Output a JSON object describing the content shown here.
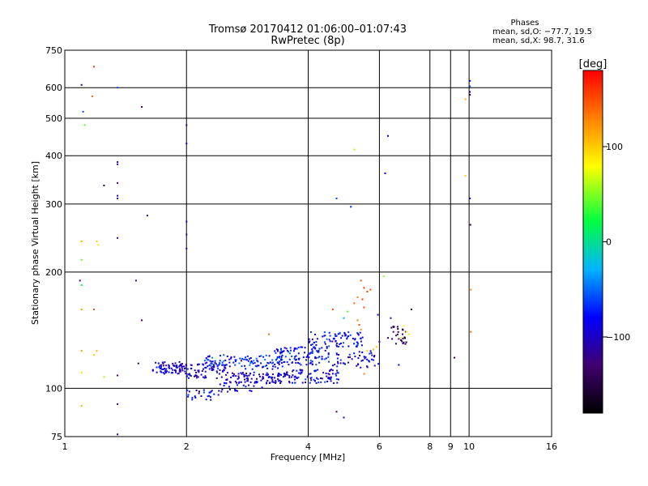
{
  "chart_data": {
    "type": "scatter",
    "title_lines": [
      "Tromsø 20170412 01:06:00–01:07:43",
      "RwPretec (8p)"
    ],
    "phases_block": {
      "heading": "Phases",
      "line1": "mean, sd,O: −77.7, 19.5",
      "line2": "mean, sd,X:  98.7, 31.6"
    },
    "xlabel": "Frequency [MHz]",
    "ylabel": "Stationary phase Virtual Height [km]",
    "xscale": "log",
    "yscale": "log",
    "xlim": [
      1,
      16
    ],
    "ylim": [
      75,
      750
    ],
    "x_ticks": [
      1,
      2,
      4,
      6,
      8,
      9,
      10,
      16
    ],
    "x_tick_labels": [
      "1",
      "2",
      "4",
      "6",
      "8",
      "9",
      "10",
      "16"
    ],
    "y_ticks": [
      75,
      100,
      200,
      300,
      400,
      500,
      600,
      750
    ],
    "y_tick_labels": [
      "75",
      "100",
      "200",
      "300",
      "400",
      "500",
      "600",
      "750"
    ],
    "grid": true,
    "colorbar": {
      "label": "[deg]",
      "range": [
        -180,
        180
      ],
      "ticks": [
        100,
        0,
        -100
      ],
      "tick_labels": [
        "100",
        "0",
        "−100"
      ]
    },
    "series": [
      {
        "values": [
          {
            "x": 1.1,
            "y": 610,
            "c": -110
          },
          {
            "x": 1.11,
            "y": 520,
            "c": -60
          },
          {
            "x": 1.12,
            "y": 480,
            "c": 40
          },
          {
            "x": 1.18,
            "y": 680,
            "c": 160
          },
          {
            "x": 1.17,
            "y": 570,
            "c": 140
          },
          {
            "x": 1.35,
            "y": 600,
            "c": -60
          },
          {
            "x": 1.55,
            "y": 535,
            "c": -130
          },
          {
            "x": 1.35,
            "y": 385,
            "c": -120
          },
          {
            "x": 1.35,
            "y": 380,
            "c": -110
          },
          {
            "x": 1.25,
            "y": 335,
            "c": -140
          },
          {
            "x": 1.35,
            "y": 340,
            "c": -120
          },
          {
            "x": 1.35,
            "y": 315,
            "c": -100
          },
          {
            "x": 1.35,
            "y": 310,
            "c": -110
          },
          {
            "x": 1.6,
            "y": 280,
            "c": -120
          },
          {
            "x": 1.35,
            "y": 245,
            "c": -120
          },
          {
            "x": 1.1,
            "y": 240,
            "c": 110
          },
          {
            "x": 1.2,
            "y": 240,
            "c": 100
          },
          {
            "x": 1.21,
            "y": 235,
            "c": 90
          },
          {
            "x": 1.1,
            "y": 215,
            "c": 40
          },
          {
            "x": 1.09,
            "y": 190,
            "c": -120
          },
          {
            "x": 1.1,
            "y": 185,
            "c": 20
          },
          {
            "x": 1.1,
            "y": 160,
            "c": 120
          },
          {
            "x": 1.18,
            "y": 160,
            "c": 150
          },
          {
            "x": 1.5,
            "y": 190,
            "c": -120
          },
          {
            "x": 1.55,
            "y": 150,
            "c": -130
          },
          {
            "x": 1.1,
            "y": 125,
            "c": 120
          },
          {
            "x": 1.2,
            "y": 125,
            "c": 110
          },
          {
            "x": 1.18,
            "y": 122,
            "c": 100
          },
          {
            "x": 1.1,
            "y": 110,
            "c": 90
          },
          {
            "x": 1.25,
            "y": 107,
            "c": 60
          },
          {
            "x": 1.35,
            "y": 108,
            "c": -140
          },
          {
            "x": 1.52,
            "y": 116,
            "c": -150
          },
          {
            "x": 1.1,
            "y": 90,
            "c": 110
          },
          {
            "x": 1.35,
            "y": 91,
            "c": -130
          },
          {
            "x": 1.35,
            "y": 76,
            "c": -120
          },
          {
            "x": 2.0,
            "y": 480,
            "c": -120
          },
          {
            "x": 2.0,
            "y": 430,
            "c": -80
          },
          {
            "x": 2.0,
            "y": 270,
            "c": -90
          },
          {
            "x": 2.0,
            "y": 250,
            "c": -110
          },
          {
            "x": 2.0,
            "y": 230,
            "c": -100
          },
          {
            "x": 5.2,
            "y": 415,
            "c": 60
          },
          {
            "x": 6.3,
            "y": 450,
            "c": -100
          },
          {
            "x": 6.2,
            "y": 360,
            "c": -90
          },
          {
            "x": 4.7,
            "y": 310,
            "c": -60
          },
          {
            "x": 5.1,
            "y": 295,
            "c": -70
          },
          {
            "x": 9.8,
            "y": 560,
            "c": 110
          },
          {
            "x": 9.8,
            "y": 355,
            "c": 100
          },
          {
            "x": 10.05,
            "y": 625,
            "c": -80
          },
          {
            "x": 10.05,
            "y": 605,
            "c": -60
          },
          {
            "x": 10.05,
            "y": 585,
            "c": -120
          },
          {
            "x": 10.05,
            "y": 575,
            "c": -140
          },
          {
            "x": 10.05,
            "y": 310,
            "c": -100
          },
          {
            "x": 10.08,
            "y": 265,
            "c": -140
          },
          {
            "x": 10.1,
            "y": 180,
            "c": 130
          },
          {
            "x": 10.1,
            "y": 140,
            "c": 140
          },
          {
            "x": 9.2,
            "y": 120,
            "c": -140
          },
          {
            "x": 6.15,
            "y": 195,
            "c": 50
          },
          {
            "x": 6.9,
            "y": 145,
            "c": 80
          },
          {
            "x": 7.0,
            "y": 140,
            "c": 90
          },
          {
            "x": 6.8,
            "y": 135,
            "c": 70
          },
          {
            "x": 7.1,
            "y": 138,
            "c": 85
          },
          {
            "x": 7.2,
            "y": 160,
            "c": -140
          },
          {
            "x": 6.7,
            "y": 115,
            "c": -80
          },
          {
            "x": 4.7,
            "y": 87,
            "c": -130
          },
          {
            "x": 4.9,
            "y": 84,
            "c": -110
          },
          {
            "x": 3.2,
            "y": 138,
            "c": 140
          },
          {
            "x": 5.4,
            "y": 190,
            "c": 150
          },
          {
            "x": 5.5,
            "y": 182,
            "c": 160
          },
          {
            "x": 5.6,
            "y": 178,
            "c": 155
          },
          {
            "x": 5.7,
            "y": 180,
            "c": 150
          },
          {
            "x": 5.3,
            "y": 172,
            "c": 130
          },
          {
            "x": 5.45,
            "y": 170,
            "c": 160
          },
          {
            "x": 5.2,
            "y": 166,
            "c": 140
          },
          {
            "x": 5.5,
            "y": 162,
            "c": 150
          },
          {
            "x": 5.3,
            "y": 150,
            "c": 130
          },
          {
            "x": 5.35,
            "y": 146,
            "c": 150
          },
          {
            "x": 5.4,
            "y": 142,
            "c": 120
          },
          {
            "x": 5.6,
            "y": 125,
            "c": 100
          },
          {
            "x": 5.8,
            "y": 126,
            "c": 110
          },
          {
            "x": 5.9,
            "y": 128,
            "c": 105
          },
          {
            "x": 5.5,
            "y": 109,
            "c": 130
          },
          {
            "x": 5.0,
            "y": 158,
            "c": 40
          },
          {
            "x": 4.9,
            "y": 152,
            "c": -30
          },
          {
            "x": 4.6,
            "y": 160,
            "c": 150
          },
          {
            "x": 6.5,
            "y": 140,
            "c": -130
          },
          {
            "x": 6.6,
            "y": 137,
            "c": -140
          },
          {
            "x": 6.3,
            "y": 135,
            "c": -150
          },
          {
            "x": 6.0,
            "y": 132,
            "c": -120
          },
          {
            "x": 6.4,
            "y": 152,
            "c": -110
          },
          {
            "x": 5.95,
            "y": 155,
            "c": -90
          }
        ]
      }
    ],
    "clusters": [
      {
        "x_range": [
          1.65,
          2.0
        ],
        "y_range": [
          109,
          117
        ],
        "count": 80,
        "c_range": [
          -130,
          -70
        ]
      },
      {
        "x_range": [
          2.0,
          2.5
        ],
        "y_range": [
          106,
          117
        ],
        "count": 70,
        "c_range": [
          -130,
          -60
        ]
      },
      {
        "x_range": [
          2.5,
          3.5
        ],
        "y_range": [
          103,
          110
        ],
        "count": 90,
        "c_range": [
          -130,
          -70
        ]
      },
      {
        "x_range": [
          2.2,
          3.5
        ],
        "y_range": [
          112,
          122
        ],
        "count": 110,
        "c_range": [
          -110,
          -40
        ]
      },
      {
        "x_range": [
          3.5,
          4.8
        ],
        "y_range": [
          103,
          112
        ],
        "count": 90,
        "c_range": [
          -120,
          -60
        ]
      },
      {
        "x_range": [
          3.3,
          4.5
        ],
        "y_range": [
          115,
          128
        ],
        "count": 110,
        "c_range": [
          -110,
          -50
        ]
      },
      {
        "x_range": [
          4.0,
          5.5
        ],
        "y_range": [
          128,
          140
        ],
        "count": 80,
        "c_range": [
          -110,
          -50
        ]
      },
      {
        "x_range": [
          4.6,
          6.0
        ],
        "y_range": [
          113,
          125
        ],
        "count": 50,
        "c_range": [
          -120,
          -60
        ]
      },
      {
        "x_range": [
          2.0,
          2.4
        ],
        "y_range": [
          93,
          99
        ],
        "count": 25,
        "c_range": [
          -110,
          -60
        ]
      },
      {
        "x_range": [
          2.4,
          3.2
        ],
        "y_range": [
          98,
          104
        ],
        "count": 30,
        "c_range": [
          -120,
          -70
        ]
      },
      {
        "x_range": [
          6.4,
          7.0
        ],
        "y_range": [
          130,
          145
        ],
        "count": 25,
        "c_range": [
          -160,
          -120
        ]
      }
    ]
  }
}
